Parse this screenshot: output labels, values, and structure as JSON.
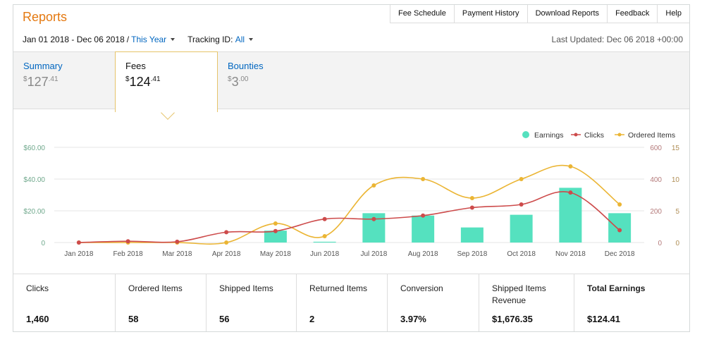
{
  "header": {
    "title": "Reports",
    "nav": [
      "Fee Schedule",
      "Payment History",
      "Download Reports",
      "Feedback",
      "Help"
    ]
  },
  "filters": {
    "date_range": "Jan 01 2018 - Dec 06 2018",
    "date_preset": "This Year",
    "tracking_label": "Tracking ID:",
    "tracking_value": "All",
    "last_updated": "Last Updated: Dec 06 2018 +00:00"
  },
  "tabs": [
    {
      "label": "Summary",
      "currency": "$",
      "whole": "127",
      "cents": ".41",
      "active": false
    },
    {
      "label": "Fees",
      "currency": "$",
      "whole": "124",
      "cents": ".41",
      "active": true
    },
    {
      "label": "Bounties",
      "currency": "$",
      "whole": "3",
      "cents": ".00",
      "active": false
    }
  ],
  "colors": {
    "earnings": "#55e1bf",
    "clicks": "#cd4b4b",
    "ordered": "#ebb534"
  },
  "chart_data": {
    "type": "bar",
    "categories": [
      "Jan 2018",
      "Feb 2018",
      "Mar 2018",
      "Apr 2018",
      "May 2018",
      "Jun 2018",
      "Jul 2018",
      "Aug 2018",
      "Sep 2018",
      "Oct 2018",
      "Nov 2018",
      "Dec 2018"
    ],
    "series": [
      {
        "name": "Earnings",
        "type": "bar",
        "axis": "left",
        "values": [
          0,
          0,
          0,
          0,
          7.5,
          0.5,
          18.5,
          17,
          9.5,
          17.5,
          34.5,
          18.5
        ]
      },
      {
        "name": "Clicks",
        "type": "line",
        "axis": "right1",
        "values": [
          0,
          8,
          5,
          65,
          72,
          148,
          148,
          170,
          220,
          240,
          315,
          78
        ]
      },
      {
        "name": "Ordered Items",
        "type": "line",
        "axis": "right2",
        "values": [
          0,
          0,
          0,
          0,
          3,
          1,
          9,
          10,
          7,
          10,
          12,
          6
        ]
      }
    ],
    "axes": {
      "left": {
        "ticks": [
          "$60.00",
          "$40.00",
          "$20.00",
          "0"
        ],
        "range": [
          0,
          60
        ]
      },
      "right1": {
        "ticks": [
          "600",
          "400",
          "200",
          "0"
        ],
        "range": [
          0,
          600
        ]
      },
      "right2": {
        "ticks": [
          "15",
          "10",
          "5",
          "0"
        ],
        "range": [
          0,
          15
        ]
      }
    },
    "legend": "top-right",
    "grid": true
  },
  "stats": [
    {
      "label": "Clicks",
      "value": "1,460"
    },
    {
      "label": "Ordered Items",
      "value": "58"
    },
    {
      "label": "Shipped Items",
      "value": "56"
    },
    {
      "label": "Returned Items",
      "value": "2"
    },
    {
      "label": "Conversion",
      "value": "3.97%"
    },
    {
      "label": "Shipped Items Revenue",
      "value": "$1,676.35"
    },
    {
      "label": "Total Earnings",
      "value": "$124.41"
    }
  ]
}
